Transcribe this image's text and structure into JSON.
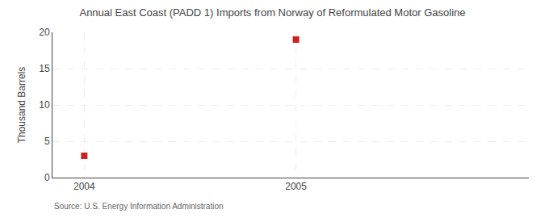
{
  "chart_data": {
    "type": "scatter",
    "title": "Annual East Coast (PADD 1) Imports from Norway of Reformulated Motor Gasoline",
    "ylabel": "Thousand Barrels",
    "source": "Source: U.S. Energy Information Administration",
    "x": [
      2004,
      2005
    ],
    "values": [
      3,
      19
    ],
    "color": "#cc2222",
    "marker": "square",
    "xlim": [
      2003.85,
      2006.1
    ],
    "xticks": [
      2004,
      2005
    ],
    "ylim": [
      0,
      20
    ],
    "yticks": [
      0,
      5,
      10,
      15,
      20
    ],
    "grid": true
  }
}
